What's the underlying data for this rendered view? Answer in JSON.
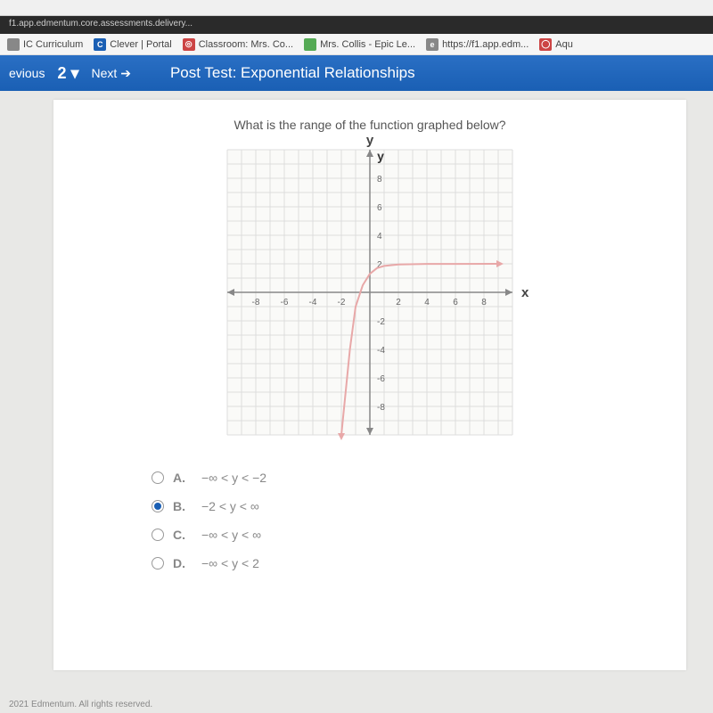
{
  "url_bar": "f1.app.edmentum.core.assessments.delivery...",
  "bookmarks": [
    {
      "label": "IC Curriculum",
      "icon_bg": "#888"
    },
    {
      "label": "Clever | Portal",
      "icon_bg": "#1a5fb4",
      "icon_text": "C"
    },
    {
      "label": "Classroom: Mrs. Co...",
      "icon_bg": "#c44",
      "icon_text": "◎"
    },
    {
      "label": "Mrs. Collis - Epic Le...",
      "icon_bg": "#5a5"
    },
    {
      "label": "https://f1.app.edm...",
      "icon_bg": "#888",
      "icon_text": "e"
    },
    {
      "label": "Aqu",
      "icon_bg": "#c44",
      "icon_text": "◯"
    }
  ],
  "nav": {
    "prev": "evious",
    "num": "2",
    "next": "Next",
    "title": "Post Test: Exponential Relationships"
  },
  "question": "What is the range of the function graphed below?",
  "graph": {
    "x_label": "x",
    "y_label": "y",
    "grid_size": 20,
    "range": 10,
    "x_ticks": [
      -8,
      -6,
      -4,
      -2,
      2,
      4,
      6,
      8
    ],
    "y_ticks": [
      -8,
      -6,
      -4,
      -2,
      2,
      4,
      6,
      8
    ],
    "curve_color": "#e8a8a8",
    "axis_color": "#888",
    "grid_color": "#ddd",
    "asymptote_y": 2,
    "curve_points": [
      [
        -2,
        -10
      ],
      [
        -1.9,
        -9
      ],
      [
        -1.8,
        -8
      ],
      [
        -1.6,
        -6
      ],
      [
        -1.4,
        -4
      ],
      [
        -1.2,
        -2.5
      ],
      [
        -1,
        -1
      ],
      [
        -0.5,
        0.5
      ],
      [
        0,
        1.3
      ],
      [
        0.5,
        1.7
      ],
      [
        1,
        1.85
      ],
      [
        2,
        1.95
      ],
      [
        4,
        1.99
      ],
      [
        6,
        1.995
      ],
      [
        9,
        1.998
      ]
    ]
  },
  "answers": [
    {
      "letter": "A.",
      "text": "−∞ < y < −2",
      "selected": false
    },
    {
      "letter": "B.",
      "text": "−2 < y < ∞",
      "selected": true
    },
    {
      "letter": "C.",
      "text": "−∞ < y < ∞",
      "selected": false
    },
    {
      "letter": "D.",
      "text": "−∞ < y < 2",
      "selected": false
    }
  ],
  "footer": "2021 Edmentum. All rights reserved."
}
